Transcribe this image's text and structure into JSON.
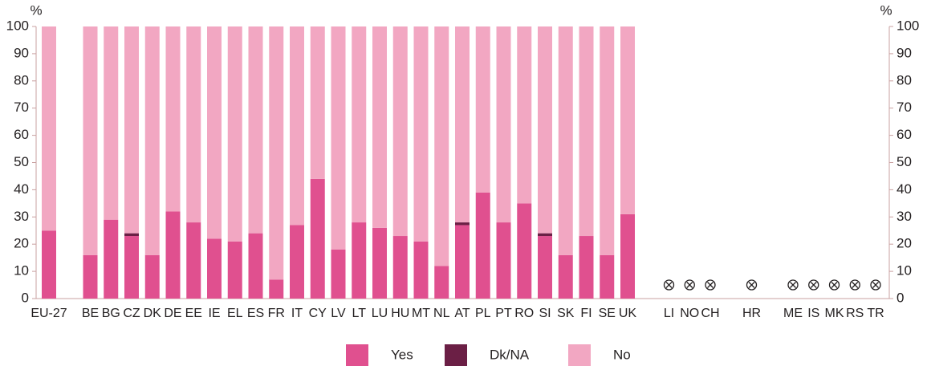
{
  "chart_data": {
    "type": "stacked_bar",
    "y_unit": "%",
    "categories": [
      "EU-27",
      null,
      "BE",
      "BG",
      "CZ",
      "DK",
      "DE",
      "EE",
      "IE",
      "EL",
      "ES",
      "FR",
      "IT",
      "CY",
      "LV",
      "LT",
      "LU",
      "HU",
      "MT",
      "NL",
      "AT",
      "PL",
      "PT",
      "RO",
      "SI",
      "SK",
      "FI",
      "SE",
      "UK",
      null,
      "LI",
      "NO",
      "CH",
      null,
      "HR",
      null,
      "ME",
      "IS",
      "MK",
      "RS",
      "TR"
    ],
    "series": [
      {
        "name": "Yes",
        "color": "#e0508f",
        "values": [
          25,
          null,
          16,
          29,
          23,
          16,
          32,
          28,
          22,
          21,
          24,
          7,
          27,
          44,
          18,
          28,
          26,
          23,
          21,
          12,
          27,
          39,
          28,
          35,
          23,
          16,
          23,
          16,
          31,
          null,
          null,
          null,
          null,
          null,
          null,
          null,
          null,
          null,
          null,
          null,
          null
        ]
      },
      {
        "name": "Dk/NA",
        "color": "#6b1f45",
        "values": [
          0,
          null,
          0,
          0,
          1,
          0,
          0,
          0,
          0,
          0,
          0,
          0,
          0,
          0,
          0,
          0,
          0,
          0,
          0,
          0,
          1,
          0,
          0,
          0,
          1,
          0,
          0,
          0,
          0,
          null,
          null,
          null,
          null,
          null,
          null,
          null,
          null,
          null,
          null,
          null,
          null
        ]
      },
      {
        "name": "No",
        "color": "#f2a7c2",
        "values": [
          75,
          null,
          84,
          71,
          76,
          84,
          68,
          72,
          78,
          79,
          76,
          93,
          73,
          56,
          82,
          72,
          74,
          77,
          79,
          88,
          72,
          61,
          72,
          65,
          76,
          84,
          77,
          84,
          69,
          null,
          null,
          null,
          null,
          null,
          null,
          null,
          null,
          null,
          null,
          null,
          null
        ]
      }
    ],
    "ylim": [
      0,
      100
    ],
    "yticks": [
      0,
      10,
      20,
      30,
      40,
      50,
      60,
      70,
      80,
      90,
      100
    ],
    "legend": "bottom",
    "axis_color": "#c9a0a0"
  }
}
